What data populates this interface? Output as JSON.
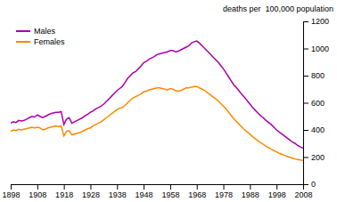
{
  "chart_data": {
    "type": "line",
    "ylabel": "deaths per  100,000 population",
    "x": [
      1898,
      1899,
      1900,
      1901,
      1902,
      1903,
      1904,
      1905,
      1906,
      1907,
      1908,
      1909,
      1910,
      1911,
      1912,
      1913,
      1914,
      1915,
      1916,
      1917,
      1918,
      1919,
      1920,
      1921,
      1922,
      1923,
      1924,
      1925,
      1926,
      1927,
      1928,
      1929,
      1930,
      1931,
      1932,
      1933,
      1934,
      1935,
      1936,
      1937,
      1938,
      1939,
      1940,
      1941,
      1942,
      1943,
      1944,
      1945,
      1946,
      1947,
      1948,
      1949,
      1950,
      1951,
      1952,
      1953,
      1954,
      1955,
      1956,
      1957,
      1958,
      1959,
      1960,
      1961,
      1962,
      1963,
      1964,
      1965,
      1966,
      1967,
      1968,
      1969,
      1970,
      1971,
      1972,
      1973,
      1974,
      1975,
      1976,
      1977,
      1978,
      1979,
      1980,
      1981,
      1982,
      1983,
      1984,
      1985,
      1986,
      1987,
      1988,
      1989,
      1990,
      1991,
      1992,
      1993,
      1994,
      1995,
      1996,
      1997,
      1998,
      1999,
      2000,
      2001,
      2002,
      2003,
      2004,
      2005,
      2006,
      2007,
      2008
    ],
    "series": [
      {
        "name": "Males",
        "color": "#aa00aa",
        "values": [
          450,
          460,
          455,
          470,
          465,
          470,
          480,
          490,
          500,
          495,
          510,
          500,
          490,
          500,
          510,
          520,
          525,
          530,
          530,
          535,
          440,
          480,
          490,
          450,
          460,
          470,
          480,
          490,
          505,
          515,
          530,
          540,
          555,
          565,
          575,
          590,
          610,
          630,
          650,
          670,
          690,
          705,
          720,
          750,
          780,
          800,
          820,
          830,
          850,
          870,
          895,
          905,
          920,
          930,
          940,
          955,
          960,
          965,
          970,
          975,
          985,
          985,
          975,
          980,
          990,
          1000,
          1010,
          1020,
          1040,
          1050,
          1055,
          1040,
          1020,
          1000,
          980,
          960,
          940,
          920,
          900,
          875,
          850,
          820,
          790,
          760,
          730,
          710,
          685,
          660,
          640,
          615,
          590,
          565,
          545,
          525,
          505,
          490,
          470,
          455,
          440,
          420,
          400,
          385,
          370,
          355,
          340,
          325,
          310,
          300,
          285,
          275,
          265
        ]
      },
      {
        "name": "Females",
        "color": "#ff8800",
        "values": [
          390,
          400,
          395,
          405,
          400,
          405,
          410,
          415,
          420,
          415,
          420,
          415,
          400,
          405,
          415,
          420,
          425,
          430,
          425,
          430,
          355,
          390,
          395,
          365,
          370,
          375,
          380,
          390,
          400,
          410,
          415,
          430,
          440,
          450,
          460,
          475,
          490,
          505,
          520,
          535,
          550,
          560,
          565,
          580,
          600,
          620,
          635,
          645,
          655,
          665,
          680,
          685,
          695,
          700,
          705,
          710,
          710,
          705,
          700,
          695,
          705,
          700,
          690,
          685,
          690,
          700,
          710,
          710,
          715,
          720,
          720,
          710,
          700,
          690,
          675,
          660,
          645,
          630,
          615,
          595,
          575,
          555,
          530,
          505,
          480,
          460,
          440,
          420,
          400,
          385,
          368,
          350,
          335,
          320,
          305,
          295,
          280,
          270,
          258,
          248,
          238,
          228,
          220,
          212,
          205,
          198,
          192,
          186,
          182,
          178,
          175
        ]
      }
    ],
    "xlim": [
      1898,
      2008
    ],
    "ylim": [
      0,
      1200
    ],
    "xticks": [
      1898,
      1908,
      1918,
      1928,
      1938,
      1948,
      1958,
      1968,
      1978,
      1988,
      1998,
      2008
    ],
    "yticks": [
      0,
      200,
      400,
      600,
      800,
      1000,
      1200
    ],
    "legend": "top-left",
    "grid": false
  }
}
